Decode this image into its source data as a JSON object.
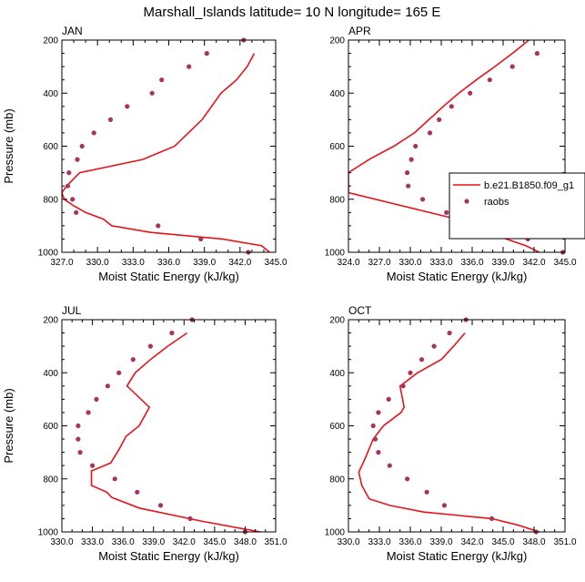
{
  "title": "Marshall_Islands  latitude= 10 N longitude= 165 E",
  "colors": {
    "model_line": "#e8131a",
    "obs_marker": "#a8345e",
    "frame": "#000000"
  },
  "legend": {
    "model_label": "b.e21.B1850.f09_g1",
    "obs_label": "raobs",
    "placement": "right"
  },
  "chart_data": [
    {
      "type": "line",
      "title": "JAN",
      "xlabel": "Moist Static Energy (kJ/kg)",
      "ylabel": "Pressure (mb)",
      "xlim": [
        327,
        345
      ],
      "ylim": [
        1000,
        200
      ],
      "xticks": [
        "327.0",
        "330.0",
        "333.0",
        "336.0",
        "339.0",
        "342.0",
        "345.0"
      ],
      "yticks": [
        "200",
        "400",
        "600",
        "800",
        "1000"
      ],
      "model": {
        "x": [
          344.5,
          343.8,
          340.5,
          334.5,
          331.2,
          330.5,
          329.0,
          328.0,
          327.2,
          327.0,
          327.4,
          328.5,
          333.8,
          336.5,
          338.8,
          340.4,
          341.7,
          342.6,
          343.2
        ],
        "y": [
          1000,
          975,
          950,
          925,
          900,
          875,
          850,
          825,
          800,
          775,
          750,
          700,
          650,
          600,
          500,
          400,
          350,
          300,
          250
        ]
      },
      "obs": {
        "x": [
          342.7,
          338.7,
          335.1,
          328.2,
          327.9,
          327.5,
          327.6,
          328.3,
          328.7,
          329.7,
          331.1,
          332.5,
          334.6,
          335.4,
          337.7,
          339.2,
          342.3
        ],
        "y": [
          1000,
          950,
          900,
          850,
          800,
          750,
          700,
          650,
          600,
          550,
          500,
          450,
          400,
          350,
          300,
          250,
          200
        ]
      }
    },
    {
      "type": "line",
      "title": "APR",
      "xlabel": "Moist Static Energy (kJ/kg)",
      "ylabel": "",
      "xlim": [
        324,
        345
      ],
      "ylim": [
        1000,
        200
      ],
      "xticks": [
        "324.0",
        "327.0",
        "330.0",
        "333.0",
        "336.0",
        "339.0",
        "342.0",
        "345.0"
      ],
      "yticks": [
        "200",
        "400",
        "600",
        "800",
        "1000"
      ],
      "model": {
        "x": [
          342.5,
          341.2,
          339.3,
          334.5,
          324.0,
          324.0,
          326.0,
          328.4,
          330.4,
          331.8,
          333.2,
          334.7,
          336.4,
          338.2,
          339.9,
          341.5
        ],
        "y": [
          1000,
          975,
          950,
          875,
          775,
          700,
          650,
          600,
          550,
          500,
          450,
          400,
          350,
          300,
          250,
          200
        ]
      },
      "obs": {
        "x": [
          344.8,
          341.4,
          336.4,
          333.5,
          331.2,
          329.8,
          329.7,
          330.1,
          330.5,
          331.9,
          332.8,
          334.0,
          335.8,
          337.7,
          339.9,
          342.3
        ],
        "y": [
          1000,
          950,
          900,
          850,
          800,
          750,
          700,
          650,
          600,
          550,
          500,
          450,
          400,
          350,
          300,
          250
        ]
      }
    },
    {
      "type": "line",
      "title": "JUL",
      "xlabel": "Moist Static Energy (kJ/kg)",
      "ylabel": "Pressure (mb)",
      "xlim": [
        330,
        351
      ],
      "ylim": [
        1000,
        200
      ],
      "xticks": [
        "330.0",
        "333.0",
        "336.0",
        "339.0",
        "342.0",
        "345.0",
        "348.0",
        "351.0"
      ],
      "yticks": [
        "200",
        "400",
        "600",
        "800",
        "1000"
      ],
      "model": {
        "x": [
          349.5,
          343.8,
          337.6,
          334.9,
          334.4,
          332.9,
          332.9,
          334.8,
          335.6,
          336.3,
          337.6,
          338.6,
          336.4,
          337.2,
          338.7,
          340.4,
          342.3
        ],
        "y": [
          1000,
          960,
          910,
          870,
          850,
          825,
          770,
          740,
          690,
          640,
          600,
          530,
          450,
          400,
          350,
          300,
          250
        ]
      },
      "obs": {
        "x": [
          348.0,
          342.6,
          339.7,
          337.4,
          335.2,
          333.0,
          331.8,
          331.6,
          331.6,
          332.6,
          333.4,
          334.5,
          335.6,
          337.0,
          338.7,
          340.8,
          342.8
        ],
        "y": [
          1000,
          950,
          900,
          850,
          800,
          750,
          700,
          650,
          600,
          550,
          500,
          450,
          400,
          350,
          300,
          250,
          200
        ]
      }
    },
    {
      "type": "line",
      "title": "OCT",
      "xlabel": "Moist Static Energy (kJ/kg)",
      "ylabel": "",
      "xlim": [
        330,
        351
      ],
      "ylim": [
        1000,
        200
      ],
      "xticks": [
        "330.0",
        "333.0",
        "336.0",
        "339.0",
        "342.0",
        "345.0",
        "348.0",
        "351.0"
      ],
      "yticks": [
        "200",
        "400",
        "600",
        "800",
        "1000"
      ],
      "model": {
        "x": [
          348.5,
          346.5,
          343.9,
          337.3,
          334.0,
          332.0,
          331.3,
          331.0,
          331.6,
          332.4,
          333.4,
          335.1,
          335.4,
          335.0,
          336.7,
          339.0,
          340.2,
          341.3
        ],
        "y": [
          1000,
          975,
          950,
          925,
          900,
          875,
          825,
          775,
          725,
          650,
          600,
          550,
          530,
          450,
          400,
          350,
          300,
          250
        ]
      },
      "obs": {
        "x": [
          348.2,
          343.9,
          339.3,
          337.6,
          335.7,
          334.0,
          332.9,
          332.6,
          332.4,
          332.9,
          333.9,
          335.3,
          336.0,
          337.1,
          338.3,
          339.8,
          341.4
        ],
        "y": [
          1000,
          950,
          900,
          850,
          800,
          750,
          700,
          650,
          600,
          550,
          500,
          450,
          400,
          350,
          300,
          250,
          200
        ]
      }
    }
  ]
}
